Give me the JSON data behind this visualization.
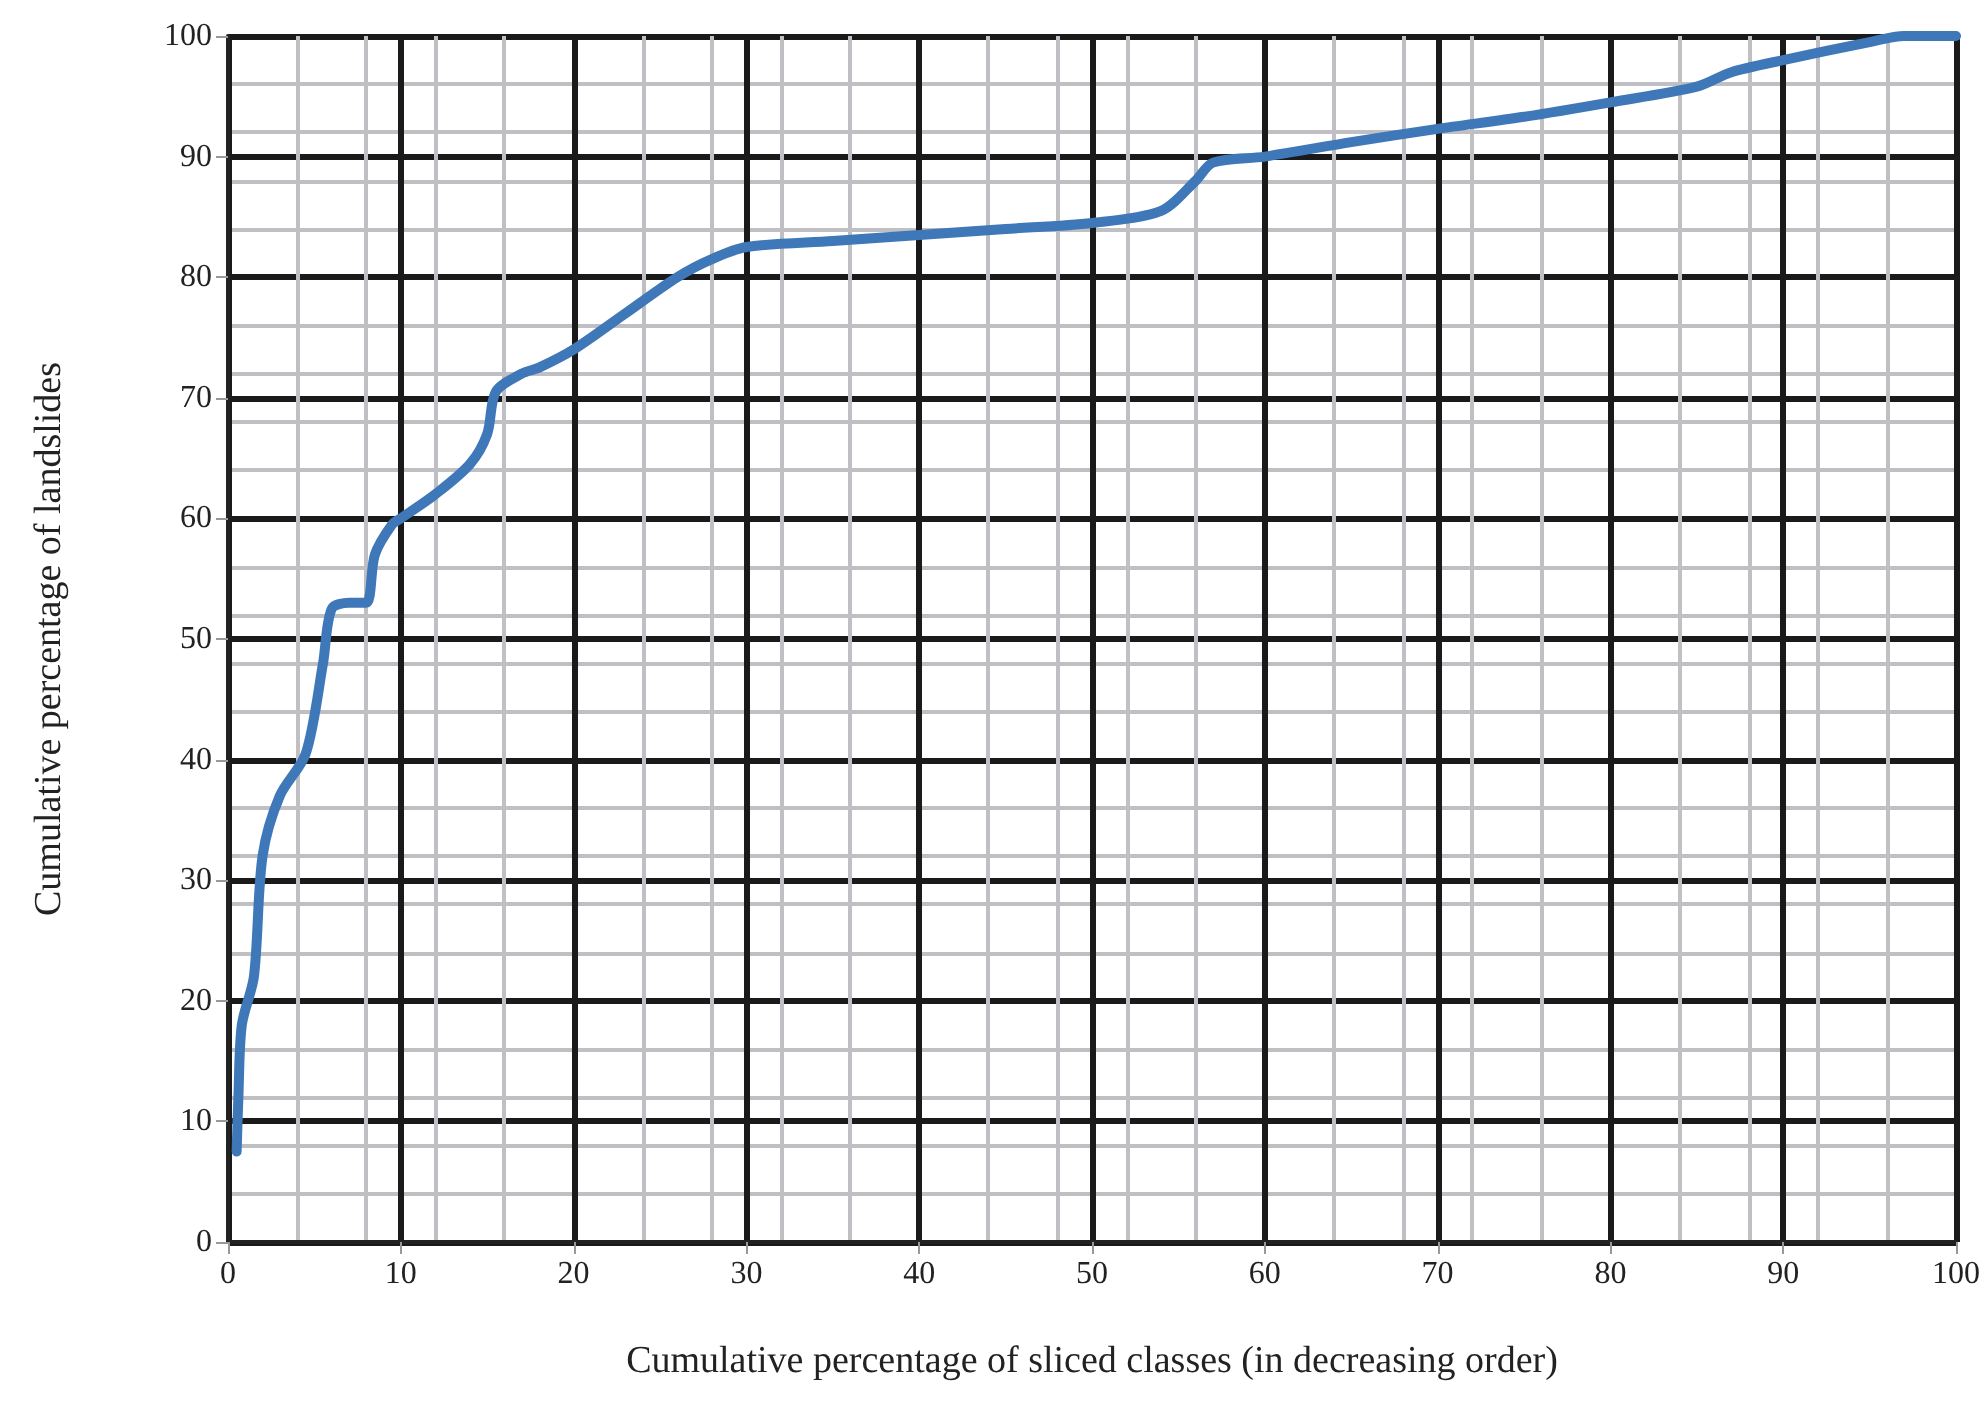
{
  "chart_data": {
    "type": "line",
    "xlabel": "Cumulative percentage of sliced classes (in decreasing order)",
    "ylabel": "Cumulative percentage of landslides",
    "x": [
      0.5,
      0.6,
      0.8,
      1.5,
      2,
      3,
      4.5,
      5.5,
      6,
      7,
      8,
      8.5,
      9.5,
      10,
      12,
      14,
      15,
      15.5,
      17,
      18,
      20,
      23,
      26,
      28,
      30,
      35,
      40,
      45,
      50,
      54,
      56,
      57,
      60,
      65,
      70,
      75,
      80,
      85,
      87,
      90,
      95,
      97,
      100
    ],
    "series": [
      {
        "color": "#3f78b8",
        "values": [
          7.5,
          12,
          18,
          22,
          32,
          37,
          40.5,
          48,
          52.5,
          53,
          53,
          57,
          59.5,
          60,
          62,
          64.5,
          67,
          70.5,
          72,
          72.5,
          74,
          77,
          80,
          81.5,
          82.5,
          83,
          83.5,
          84,
          84.5,
          85.5,
          88,
          89.5,
          90,
          91.2,
          92.3,
          93.3,
          94.5,
          95.8,
          97,
          98,
          99.5,
          100,
          100
        ]
      }
    ],
    "xlim": [
      0,
      100
    ],
    "xticks": [
      0,
      10,
      20,
      30,
      40,
      50,
      60,
      70,
      80,
      90,
      100
    ],
    "ylim": [
      0,
      100
    ],
    "yticks": [
      0,
      10,
      20,
      30,
      40,
      50,
      60,
      70,
      80,
      90,
      100
    ],
    "grid": true,
    "marker": "none",
    "line_style": "solid"
  }
}
